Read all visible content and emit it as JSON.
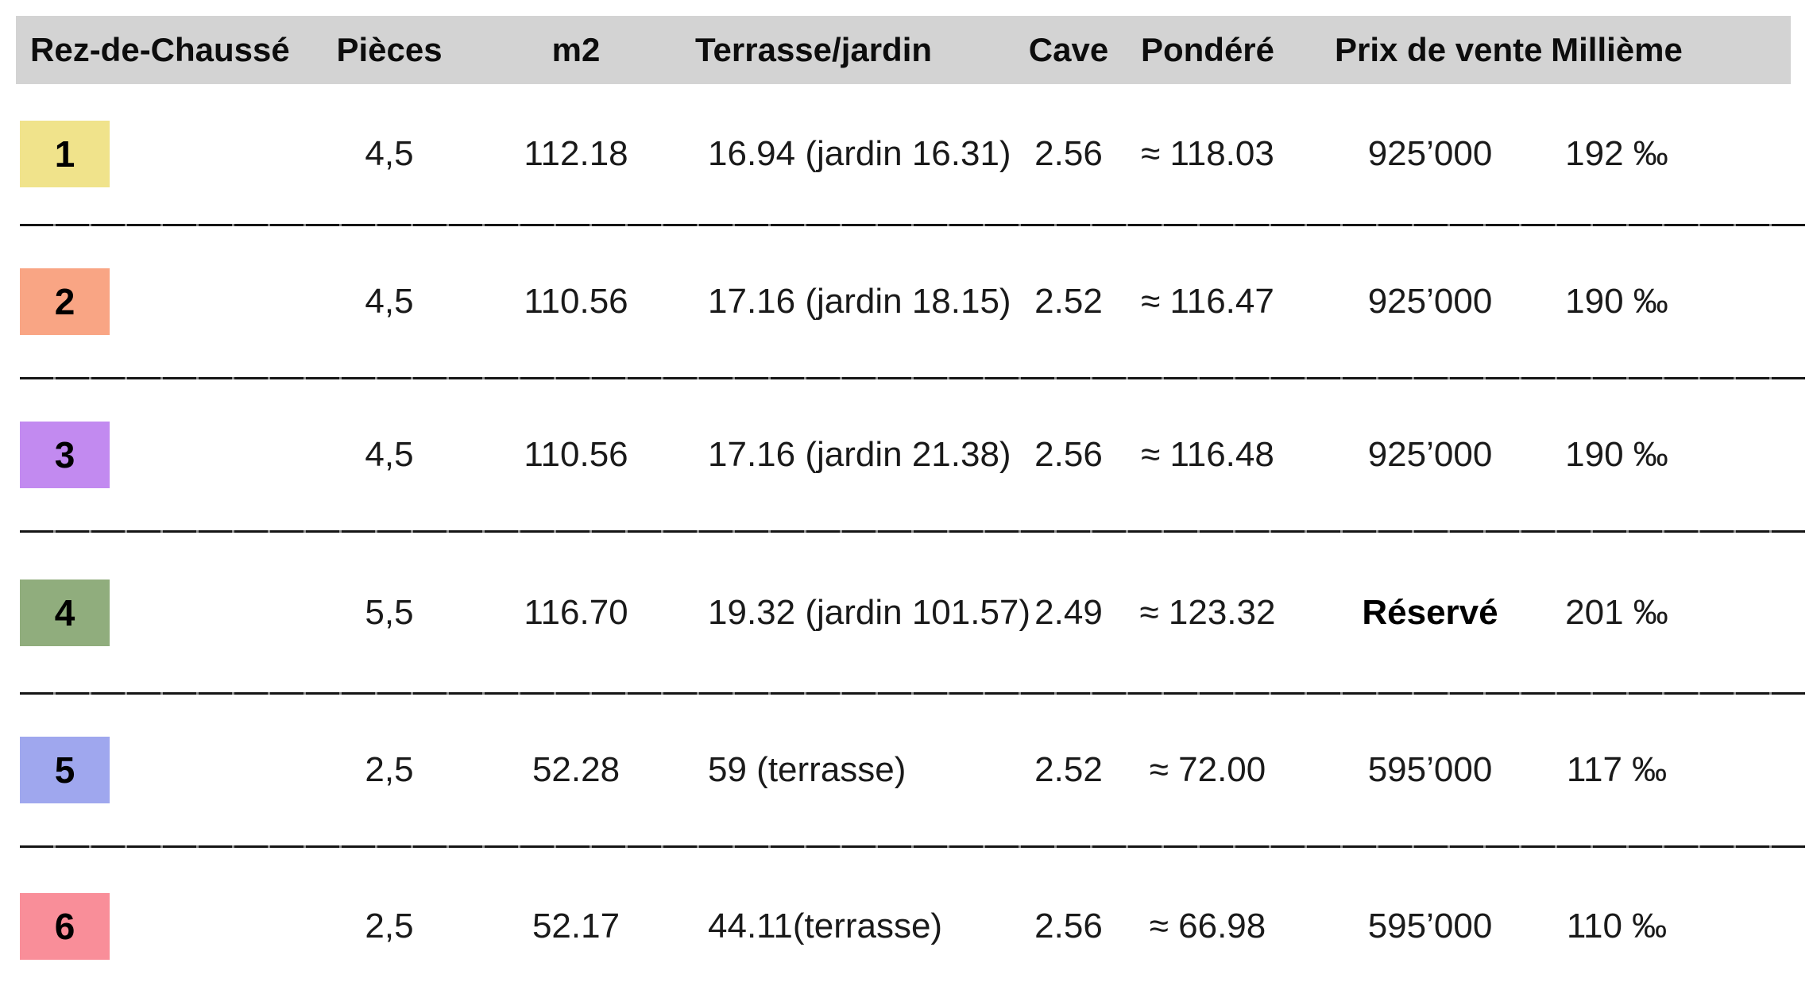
{
  "table": {
    "columns": [
      {
        "key": "unit",
        "label": "Rez-de-Chaussé"
      },
      {
        "key": "pieces",
        "label": "Pièces"
      },
      {
        "key": "m2",
        "label": "m2"
      },
      {
        "key": "terrasse",
        "label": "Terrasse/jardin"
      },
      {
        "key": "cave",
        "label": "Cave"
      },
      {
        "key": "pondere",
        "label": "Pondéré"
      },
      {
        "key": "prix",
        "label": "Prix de vente"
      },
      {
        "key": "millieme",
        "label": "Millième"
      }
    ],
    "rows": [
      {
        "num": "1",
        "badge_color": "#f0e38b",
        "pieces": "4,5",
        "m2": "112.18",
        "terrasse": "16.94 (jardin 16.31)",
        "cave": "2.56",
        "pondere": "≈ 118.03",
        "prix": "925’000",
        "prix_bold": false,
        "millieme": "192 ‰"
      },
      {
        "num": "2",
        "badge_color": "#f9a584",
        "pieces": "4,5",
        "m2": "110.56",
        "terrasse": "17.16 (jardin 18.15)",
        "cave": "2.52",
        "pondere": "≈ 116.47",
        "prix": "925’000",
        "prix_bold": false,
        "millieme": "190 ‰"
      },
      {
        "num": "3",
        "badge_color": "#c28af0",
        "pieces": "4,5",
        "m2": "110.56",
        "terrasse": "17.16 (jardin 21.38)",
        "cave": "2.56",
        "pondere": "≈ 116.48",
        "prix": "925’000",
        "prix_bold": false,
        "millieme": "190 ‰"
      },
      {
        "num": "4",
        "badge_color": "#90ad7d",
        "pieces": "5,5",
        "m2": "116.70",
        "terrasse": "19.32 (jardin 101.57)",
        "cave": "2.49",
        "pondere": "≈ 123.32",
        "prix": "Réservé",
        "prix_bold": true,
        "millieme": "201 ‰"
      },
      {
        "num": "5",
        "badge_color": "#9fa7ee",
        "pieces": "2,5",
        "m2": "52.28",
        "terrasse": "59 (terrasse)",
        "cave": "2.52",
        "pondere": "≈ 72.00",
        "prix": "595’000",
        "prix_bold": false,
        "millieme": "117 ‰"
      },
      {
        "num": "6",
        "badge_color": "#f98e99",
        "pieces": "2,5",
        "m2": "52.17",
        "terrasse": "44.11(terrasse)",
        "cave": "2.56",
        "pondere": "≈ 66.98",
        "prix": "595’000",
        "prix_bold": false,
        "millieme": "110 ‰"
      }
    ]
  },
  "colors": {
    "header_bg": "#d3d3d3",
    "separator": "#151515",
    "text": "#1a1a1a"
  }
}
